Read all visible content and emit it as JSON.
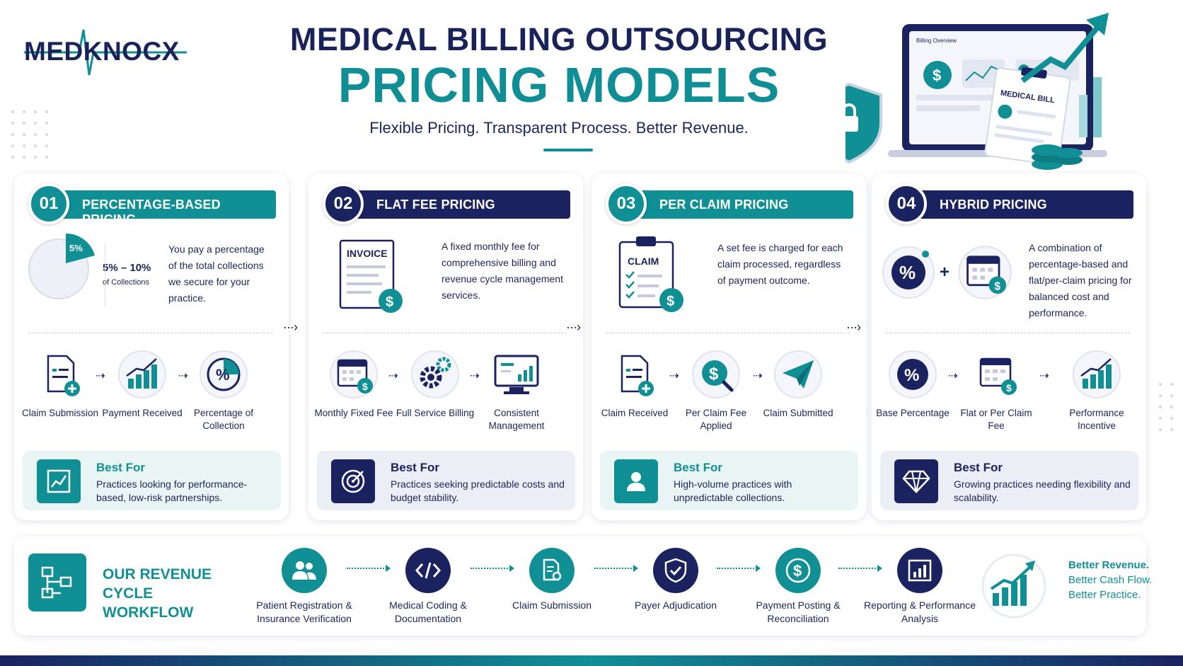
{
  "brand": {
    "logo_text": "MEDKNOCX"
  },
  "header": {
    "title_line1": "MEDICAL BILLING OUTSOURCING",
    "title_line2": "PRICING MODELS",
    "subtitle": "Flexible Pricing. Transparent Process. Better Revenue."
  },
  "hero": {
    "bill_label": "MEDICAL BILL",
    "screen_title": "Billing Overview"
  },
  "colors": {
    "navy": "#1a2360",
    "teal": "#108f95",
    "light_teal": "#e9f5f5",
    "light_navy": "#eceef6"
  },
  "cards": [
    {
      "number": "01",
      "title": "PERCENTAGE-BASED PRICING",
      "pie_pct": "5%",
      "range": "5% – 10%",
      "range_sub": "of Collections",
      "description": "You pay a percentage of the total collections we secure for your practice.",
      "flow": [
        {
          "label": "Claim Submission",
          "icon": "document-plus-icon"
        },
        {
          "label": "Payment Received",
          "icon": "bar-growth-icon"
        },
        {
          "label": "Percentage of Collection",
          "icon": "percent-icon"
        }
      ],
      "best_title": "Best For",
      "best_desc": "Practices looking for performance-based, low-risk partnerships."
    },
    {
      "number": "02",
      "title": "FLAT FEE PRICING",
      "doc_label": "INVOICE",
      "description": "A fixed monthly fee for comprehensive billing and revenue cycle management services.",
      "flow": [
        {
          "label": "Monthly Fixed Fee",
          "icon": "calendar-dollar-icon"
        },
        {
          "label": "Full Service Billing",
          "icon": "gears-icon"
        },
        {
          "label": "Consistent Management",
          "icon": "monitor-chart-icon"
        }
      ],
      "best_title": "Best For",
      "best_desc": "Practices seeking predictable costs and budget stability."
    },
    {
      "number": "03",
      "title": "PER CLAIM PRICING",
      "doc_label": "CLAIM",
      "description": "A set fee is charged for each claim processed, regardless of payment outcome.",
      "flow": [
        {
          "label": "Claim Received",
          "icon": "document-plus-icon"
        },
        {
          "label": "Per Claim Fee Applied",
          "icon": "dollar-search-icon"
        },
        {
          "label": "Claim Submitted",
          "icon": "paper-plane-icon"
        }
      ],
      "best_title": "Best For",
      "best_desc": "High-volume practices with unpredictable collections."
    },
    {
      "number": "04",
      "title": "HYBRID PRICING",
      "description": "A combination of percentage-based and flat/per-claim pricing for balanced cost and performance.",
      "flow": [
        {
          "label": "Base Percentage",
          "icon": "percent-icon"
        },
        {
          "label": "Flat or Per Claim Fee",
          "icon": "calendar-dollar-icon"
        },
        {
          "label": "Performance Incentive",
          "icon": "bar-growth-icon"
        }
      ],
      "best_title": "Best For",
      "best_desc": "Growing practices needing flexibility and scalability."
    }
  ],
  "workflow": {
    "title_line1": "OUR REVENUE",
    "title_line2": "CYCLE WORKFLOW",
    "steps": [
      {
        "label": "Patient Registration & Insurance Verification",
        "icon": "users-icon"
      },
      {
        "label": "Medical Coding & Documentation",
        "icon": "code-icon"
      },
      {
        "label": "Claim Submission",
        "icon": "document-search-icon"
      },
      {
        "label": "Payer Adjudication",
        "icon": "shield-check-icon"
      },
      {
        "label": "Payment Posting & Reconciliation",
        "icon": "dollar-circle-icon"
      },
      {
        "label": "Reporting & Performance Analysis",
        "icon": "report-chart-icon"
      }
    ],
    "outcomes": [
      "Better Revenue.",
      "Better Cash Flow.",
      "Better Practice."
    ]
  }
}
